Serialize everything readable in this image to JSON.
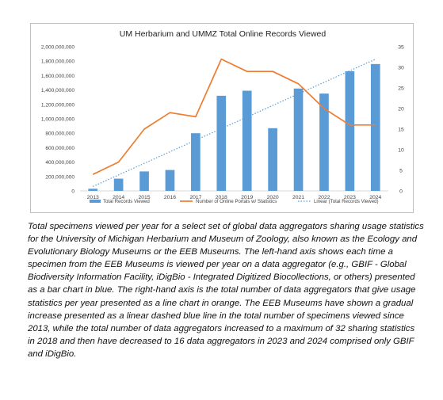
{
  "chart_data": {
    "type": "bar+line",
    "title": "UM Herbarium and UMMZ Total Online Records Viewed",
    "categories": [
      "2013",
      "2014",
      "2015",
      "2016",
      "2017",
      "2018",
      "2019",
      "2020",
      "2021",
      "2022",
      "2023",
      "2024"
    ],
    "series": [
      {
        "name": "Total Records Viewed",
        "type": "bar",
        "axis": "left",
        "color": "#5b9bd5",
        "values": [
          30000000,
          170000000,
          270000000,
          290000000,
          800000000,
          1320000000,
          1390000000,
          870000000,
          1420000000,
          1350000000,
          1660000000,
          1760000000
        ]
      },
      {
        "name": "Number of Online Portals w/ Statistics",
        "type": "line",
        "axis": "right",
        "color": "#ed7d31",
        "values": [
          4,
          7,
          15,
          19,
          18,
          32,
          29,
          29,
          26,
          20,
          16,
          16
        ]
      },
      {
        "name": "Linear (Total Records Viewed)",
        "type": "trendline",
        "style": "dotted",
        "color": "#5b9bd5"
      }
    ],
    "y_left": {
      "min": 0,
      "max": 2000000000,
      "ticks": [
        "0",
        "200,000,000",
        "400,000,000",
        "600,000,000",
        "800,000,000",
        "1,000,000,000",
        "1,200,000,000",
        "1,400,000,000",
        "1,600,000,000",
        "1,800,000,000",
        "2,000,000,000"
      ]
    },
    "y_right": {
      "min": 0,
      "max": 35,
      "ticks": [
        "0",
        "5",
        "10",
        "15",
        "20",
        "25",
        "30",
        "35"
      ]
    },
    "grid": false,
    "legend": "bottom"
  },
  "caption": "Total specimens viewed per year for a select set of global data aggregators sharing usage statistics for the University of Michigan Herbarium and Museum of Zoology, also known as the Ecology and Evolutionary Biology Museums or the EEB Museums. The left-hand axis shows each time a specimen from the EEB Museums is viewed per year on a data aggregator (e.g., GBIF - Global Biodiversity Information Facility, iDigBio - Integrated Digitized Biocollections, or others) presented as a bar chart in blue. The right-hand axis is the total number of data aggregators that give usage statistics per year presented as a line chart in orange. The EEB Museums have shown a gradual increase presented as a linear dashed blue line in the total number of specimens viewed since 2013, while the total number of data aggregators increased to a maximum of 32 sharing statistics in 2018 and then have decreased to 16 data aggregators in 2023 and 2024 comprised only GBIF and iDigBio."
}
